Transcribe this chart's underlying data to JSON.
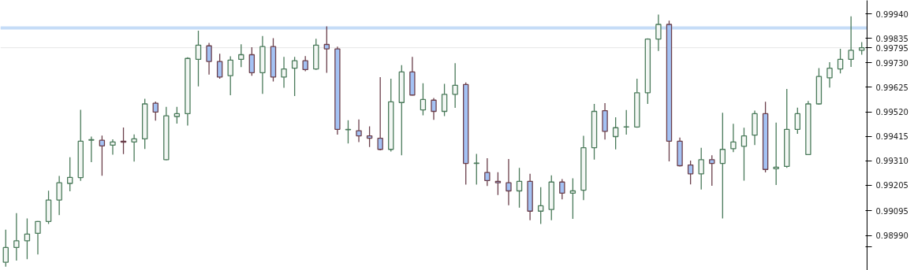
{
  "chart_data": {
    "type": "candlestick",
    "categories": [
      null,
      null,
      null,
      null,
      null,
      null,
      null,
      null,
      null,
      null,
      null,
      null,
      null,
      null,
      null,
      null,
      null,
      null,
      null,
      null,
      null,
      null,
      null,
      null,
      null,
      null,
      null,
      null,
      null,
      null,
      null,
      null,
      null,
      null,
      null,
      null,
      null,
      null,
      null,
      null,
      null,
      null,
      null,
      null,
      null,
      null,
      null,
      null,
      null,
      null,
      null,
      null,
      null,
      null,
      null,
      null,
      null,
      null,
      null,
      null,
      null,
      null,
      null,
      null,
      null,
      null,
      null,
      null,
      null,
      null,
      null,
      null,
      null,
      null,
      null,
      null,
      null,
      null,
      null,
      null,
      null
    ],
    "ohlc": [
      [
        0.98875,
        0.99015,
        0.98856,
        0.98938
      ],
      [
        0.98938,
        0.99086,
        0.98882,
        0.98967
      ],
      [
        0.98967,
        0.99063,
        0.98888,
        0.98996
      ],
      [
        0.98999,
        0.99052,
        0.98908,
        0.9905
      ],
      [
        0.9905,
        0.99182,
        0.99039,
        0.99142
      ],
      [
        0.99142,
        0.99245,
        0.99077,
        0.99216
      ],
      [
        0.99213,
        0.99325,
        0.99179,
        0.99239
      ],
      [
        0.99238,
        0.99529,
        0.99224,
        0.99394
      ],
      [
        0.99398,
        0.99414,
        0.99304,
        0.99401
      ],
      [
        0.99398,
        0.99418,
        0.99246,
        0.99374
      ],
      [
        0.99377,
        0.99402,
        0.99336,
        0.99391
      ],
      [
        0.99394,
        0.99453,
        0.99339,
        0.9939
      ],
      [
        0.99391,
        0.99423,
        0.99307,
        0.99404
      ],
      [
        0.99404,
        0.99576,
        0.99361,
        0.99554
      ],
      [
        0.99557,
        0.99564,
        0.99482,
        0.99519
      ],
      [
        0.99315,
        0.99541,
        0.99313,
        0.99503
      ],
      [
        0.995,
        0.99541,
        0.9947,
        0.99512
      ],
      [
        0.99512,
        0.99754,
        0.99461,
        0.99749
      ],
      [
        0.99745,
        0.99868,
        0.99629,
        0.99806
      ],
      [
        0.99803,
        0.99816,
        0.9968,
        0.99736
      ],
      [
        0.99736,
        0.99769,
        0.99662,
        0.99669
      ],
      [
        0.99675,
        0.99758,
        0.99591,
        0.99742
      ],
      [
        0.99745,
        0.9981,
        0.99712,
        0.99765
      ],
      [
        0.99765,
        0.99797,
        0.99675,
        0.99688
      ],
      [
        0.99688,
        0.99845,
        0.99597,
        0.998
      ],
      [
        0.998,
        0.99836,
        0.9965,
        0.99669
      ],
      [
        0.99669,
        0.99756,
        0.99623,
        0.99704
      ],
      [
        0.99707,
        0.99756,
        0.99588,
        0.99739
      ],
      [
        0.99739,
        0.99759,
        0.99694,
        0.99701
      ],
      [
        0.99704,
        0.99833,
        0.997,
        0.99806
      ],
      [
        0.99809,
        0.99887,
        0.99687,
        0.9979
      ],
      [
        0.9979,
        0.998,
        0.99422,
        0.99445
      ],
      [
        0.99443,
        0.99484,
        0.99384,
        0.99445
      ],
      [
        0.99439,
        0.99487,
        0.9939,
        0.99417
      ],
      [
        0.99417,
        0.99458,
        0.99369,
        0.99407
      ],
      [
        0.99407,
        0.99669,
        0.99355,
        0.99359
      ],
      [
        0.99359,
        0.99662,
        0.9935,
        0.99563
      ],
      [
        0.9956,
        0.9972,
        0.99334,
        0.99691
      ],
      [
        0.99691,
        0.99756,
        0.9959,
        0.99592
      ],
      [
        0.99528,
        0.99643,
        0.99505,
        0.99573
      ],
      [
        0.9957,
        0.99579,
        0.99486,
        0.99522
      ],
      [
        0.99522,
        0.9964,
        0.99502,
        0.99595
      ],
      [
        0.99595,
        0.99729,
        0.99537,
        0.99634
      ],
      [
        0.99637,
        0.99646,
        0.99208,
        0.99299
      ],
      [
        0.99299,
        0.9934,
        0.99208,
        0.993
      ],
      [
        0.9926,
        0.99321,
        0.99202,
        0.99225
      ],
      [
        0.99222,
        0.99261,
        0.99163,
        0.99216
      ],
      [
        0.99216,
        0.99318,
        0.99119,
        0.99181
      ],
      [
        0.99181,
        0.9928,
        0.99109,
        0.99222
      ],
      [
        0.99222,
        0.99254,
        0.99055,
        0.99094
      ],
      [
        0.99094,
        0.99197,
        0.99039,
        0.99117
      ],
      [
        0.99101,
        0.99248,
        0.99055,
        0.99219
      ],
      [
        0.99219,
        0.99232,
        0.99145,
        0.99171
      ],
      [
        0.99171,
        0.99235,
        0.99061,
        0.99181
      ],
      [
        0.99184,
        0.99417,
        0.99141,
        0.99366
      ],
      [
        0.99366,
        0.99554,
        0.99315,
        0.99522
      ],
      [
        0.99525,
        0.99557,
        0.99401,
        0.99436
      ],
      [
        0.99414,
        0.99497,
        0.99359,
        0.99452
      ],
      [
        0.99455,
        0.99528,
        0.99422,
        0.99456
      ],
      [
        0.99455,
        0.99662,
        0.99452,
        0.99602
      ],
      [
        0.99602,
        0.99835,
        0.99554,
        0.99832
      ],
      [
        0.99832,
        0.99937,
        0.99781,
        0.99895
      ],
      [
        0.99895,
        0.99911,
        0.99308,
        0.99394
      ],
      [
        0.99394,
        0.9941,
        0.99286,
        0.99289
      ],
      [
        0.99292,
        0.99311,
        0.99209,
        0.99254
      ],
      [
        0.99254,
        0.99366,
        0.99187,
        0.99315
      ],
      [
        0.99315,
        0.99334,
        0.99203,
        0.99299
      ],
      [
        0.99299,
        0.99516,
        0.99063,
        0.99359
      ],
      [
        0.99362,
        0.99469,
        0.99347,
        0.99391
      ],
      [
        0.99372,
        0.99452,
        0.99225,
        0.99417
      ],
      [
        0.9942,
        0.99525,
        0.99378,
        0.99512
      ],
      [
        0.99512,
        0.99563,
        0.9926,
        0.99273
      ],
      [
        0.99276,
        0.99474,
        0.99206,
        0.99283
      ],
      [
        0.99286,
        0.99618,
        0.9928,
        0.99445
      ],
      [
        0.99445,
        0.99538,
        0.99426,
        0.99512
      ],
      [
        0.99337,
        0.99567,
        0.99335,
        0.99554
      ],
      [
        0.99554,
        0.99708,
        0.99551,
        0.99672
      ],
      [
        0.99666,
        0.99733,
        0.99624,
        0.99707
      ],
      [
        0.99704,
        0.9979,
        0.99685,
        0.99745
      ],
      [
        0.99745,
        0.9993,
        0.99713,
        0.99784
      ],
      [
        0.99784,
        0.99819,
        0.99765,
        0.99795
      ]
    ],
    "colors": [
      "#4a7a5a",
      "#4a7a5a",
      "#4a7a5a",
      "#4a7a5a",
      "#4a7a5a",
      "#4a7a5a",
      "#4a7a5a",
      "#4a7a5a",
      "#4a7a5a",
      "#a4c2f4",
      "#4a7a5a",
      "#a4c2f4",
      "#4a7a5a",
      "#4a7a5a",
      "#a4c2f4",
      "#4a7a5a",
      "#4a7a5a",
      "#4a7a5a",
      "#4a7a5a",
      "#a4c2f4",
      "#a4c2f4",
      "#4a7a5a",
      "#4a7a5a",
      "#a4c2f4",
      "#4a7a5a",
      "#a4c2f4",
      "#4a7a5a",
      "#4a7a5a",
      "#a4c2f4",
      "#4a7a5a",
      "#a4c2f4",
      "#a4c2f4",
      "#4a7a5a",
      "#a4c2f4",
      "#a4c2f4",
      "#a4c2f4",
      "#4a7a5a",
      "#4a7a5a",
      "#a4c2f4",
      "#4a7a5a",
      "#a4c2f4",
      "#4a7a5a",
      "#4a7a5a",
      "#a4c2f4",
      "#4a7a5a",
      "#a4c2f4",
      "#a4c2f4",
      "#a4c2f4",
      "#4a7a5a",
      "#a4c2f4",
      "#4a7a5a",
      "#4a7a5a",
      "#a4c2f4",
      "#4a7a5a",
      "#4a7a5a",
      "#4a7a5a",
      "#a4c2f4",
      "#4a7a5a",
      "#4a7a5a",
      "#4a7a5a",
      "#4a7a5a",
      "#4a7a5a",
      "#a4c2f4",
      "#a4c2f4",
      "#a4c2f4",
      "#4a7a5a",
      "#a4c2f4",
      "#4a7a5a",
      "#4a7a5a",
      "#4a7a5a",
      "#4a7a5a",
      "#a4c2f4",
      "#4a7a5a",
      "#4a7a5a",
      "#4a7a5a",
      "#4a7a5a",
      "#4a7a5a",
      "#4a7a5a",
      "#4a7a5a",
      "#4a7a5a",
      "#4a7a5a"
    ],
    "ylim": [
      0.9884,
      0.99998
    ],
    "yticks": [
      {
        "value": 0.9894,
        "label": null
      },
      {
        "value": 0.9899,
        "label": "0.98990"
      },
      {
        "value": 0.99095,
        "label": "0.99095"
      },
      {
        "value": 0.99205,
        "label": "0.99205"
      },
      {
        "value": 0.9931,
        "label": "0.99310"
      },
      {
        "value": 0.99415,
        "label": "0.99415"
      },
      {
        "value": 0.9952,
        "label": "0.99520"
      },
      {
        "value": 0.99625,
        "label": "0.99625"
      },
      {
        "value": 0.9973,
        "label": "0.99730"
      },
      {
        "value": 0.99835,
        "label": "0.99835"
      },
      {
        "value": 0.9994,
        "label": "0.99940"
      }
    ],
    "ref_lines": [
      {
        "axis": "y",
        "value": 0.9988,
        "label": null,
        "color": "#c5dcf7"
      },
      {
        "axis": "y",
        "value": 0.99795,
        "label": "0.99795",
        "color": "#e6e6e6"
      }
    ],
    "grid": false,
    "tick_labels": "y"
  }
}
